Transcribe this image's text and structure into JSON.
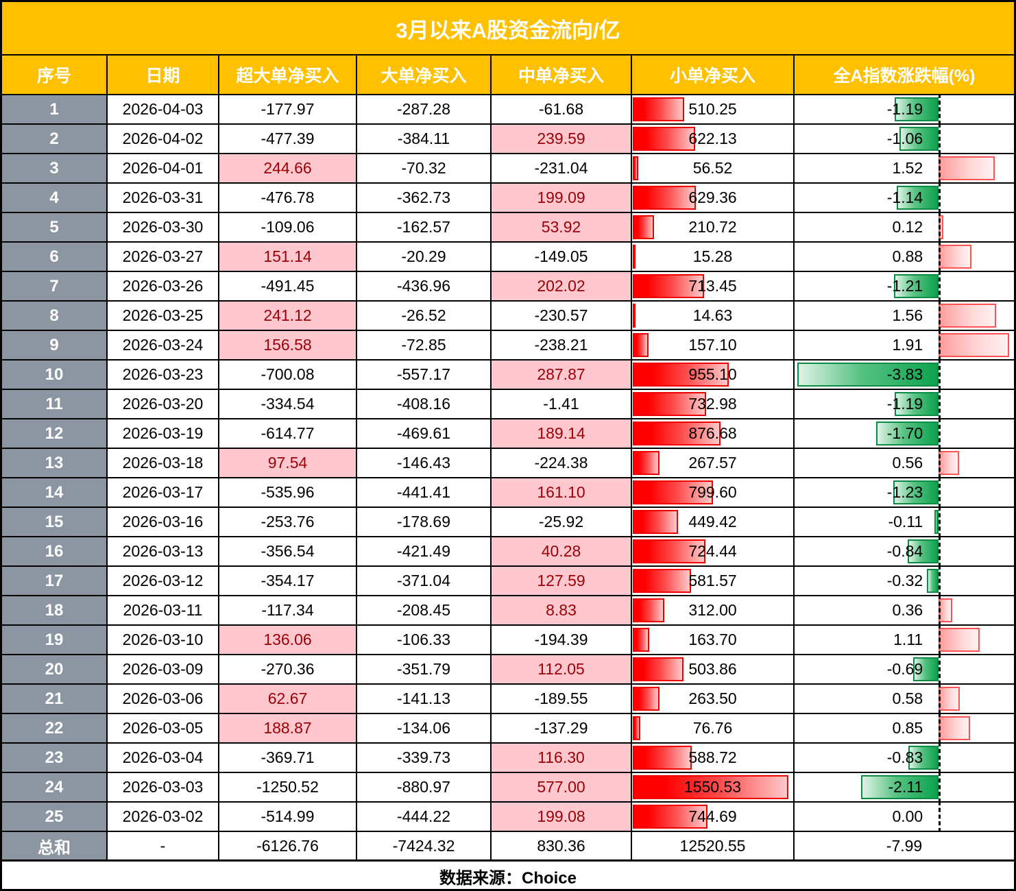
{
  "title": "3月以来A股资金流向/亿",
  "footer": {
    "source": "数据来源：Choice"
  },
  "columns": [
    "序号",
    "日期",
    "超大单净买入",
    "大单净买入",
    "中单净买入",
    "小单净买入",
    "全A指数涨跌幅(%)"
  ],
  "colors": {
    "header_bg": "#FFC000",
    "header_text": "#FFFFFF",
    "index_col_bg": "#8C96A3",
    "positive_cell_bg": "#FFC7CE",
    "positive_cell_text": "#9C0006",
    "small_net_bar": "#FF0000",
    "change_bar_negative": "#0CA24E",
    "change_bar_positive": "#FF5252",
    "zero_axis": "#000000"
  },
  "chart_data": {
    "type": "table",
    "title": "3月以来A股资金流向/亿",
    "columns": [
      "序号",
      "日期",
      "超大单净买入",
      "大单净买入",
      "中单净买入",
      "小单净买入",
      "全A指数涨跌幅(%)"
    ],
    "bar_scales": {
      "small_net_max": 1550.53,
      "index_change_max": 3.83
    },
    "rows": [
      {
        "no": "1",
        "date": "2026-04-03",
        "xl": "-177.97",
        "l": "-287.28",
        "m": "-61.68",
        "s": "510.25",
        "idx": "-1.19"
      },
      {
        "no": "2",
        "date": "2026-04-02",
        "xl": "-477.39",
        "l": "-384.11",
        "m": "239.59",
        "s": "622.13",
        "idx": "-1.06"
      },
      {
        "no": "3",
        "date": "2026-04-01",
        "xl": "244.66",
        "l": "-70.32",
        "m": "-231.04",
        "s": "56.52",
        "idx": "1.52"
      },
      {
        "no": "4",
        "date": "2026-03-31",
        "xl": "-476.78",
        "l": "-362.73",
        "m": "199.09",
        "s": "629.36",
        "idx": "-1.14"
      },
      {
        "no": "5",
        "date": "2026-03-30",
        "xl": "-109.06",
        "l": "-162.57",
        "m": "53.92",
        "s": "210.72",
        "idx": "0.12"
      },
      {
        "no": "6",
        "date": "2026-03-27",
        "xl": "151.14",
        "l": "-20.29",
        "m": "-149.05",
        "s": "15.28",
        "idx": "0.88"
      },
      {
        "no": "7",
        "date": "2026-03-26",
        "xl": "-491.45",
        "l": "-436.96",
        "m": "202.02",
        "s": "713.45",
        "idx": "-1.21"
      },
      {
        "no": "8",
        "date": "2026-03-25",
        "xl": "241.12",
        "l": "-26.52",
        "m": "-230.57",
        "s": "14.63",
        "idx": "1.56"
      },
      {
        "no": "9",
        "date": "2026-03-24",
        "xl": "156.58",
        "l": "-72.85",
        "m": "-238.21",
        "s": "157.10",
        "idx": "1.91"
      },
      {
        "no": "10",
        "date": "2026-03-23",
        "xl": "-700.08",
        "l": "-557.17",
        "m": "287.87",
        "s": "955.10",
        "idx": "-3.83"
      },
      {
        "no": "11",
        "date": "2026-03-20",
        "xl": "-334.54",
        "l": "-408.16",
        "m": "-1.41",
        "s": "732.98",
        "idx": "-1.19"
      },
      {
        "no": "12",
        "date": "2026-03-19",
        "xl": "-614.77",
        "l": "-469.61",
        "m": "189.14",
        "s": "876.68",
        "idx": "-1.70"
      },
      {
        "no": "13",
        "date": "2026-03-18",
        "xl": "97.54",
        "l": "-146.43",
        "m": "-224.38",
        "s": "267.57",
        "idx": "0.56"
      },
      {
        "no": "14",
        "date": "2026-03-17",
        "xl": "-535.96",
        "l": "-441.41",
        "m": "161.10",
        "s": "799.60",
        "idx": "-1.23"
      },
      {
        "no": "15",
        "date": "2026-03-16",
        "xl": "-253.76",
        "l": "-178.69",
        "m": "-25.92",
        "s": "449.42",
        "idx": "-0.11"
      },
      {
        "no": "16",
        "date": "2026-03-13",
        "xl": "-356.54",
        "l": "-421.49",
        "m": "40.28",
        "s": "724.44",
        "idx": "-0.84"
      },
      {
        "no": "17",
        "date": "2026-03-12",
        "xl": "-354.17",
        "l": "-371.04",
        "m": "127.59",
        "s": "581.57",
        "idx": "-0.32"
      },
      {
        "no": "18",
        "date": "2026-03-11",
        "xl": "-117.34",
        "l": "-208.45",
        "m": "8.83",
        "s": "312.00",
        "idx": "0.36"
      },
      {
        "no": "19",
        "date": "2026-03-10",
        "xl": "136.06",
        "l": "-106.33",
        "m": "-194.39",
        "s": "163.70",
        "idx": "1.11"
      },
      {
        "no": "20",
        "date": "2026-03-09",
        "xl": "-270.36",
        "l": "-351.79",
        "m": "112.05",
        "s": "503.86",
        "idx": "-0.69"
      },
      {
        "no": "21",
        "date": "2026-03-06",
        "xl": "62.67",
        "l": "-141.13",
        "m": "-189.55",
        "s": "263.50",
        "idx": "0.58"
      },
      {
        "no": "22",
        "date": "2026-03-05",
        "xl": "188.87",
        "l": "-134.06",
        "m": "-137.29",
        "s": "76.76",
        "idx": "0.85"
      },
      {
        "no": "23",
        "date": "2026-03-04",
        "xl": "-369.71",
        "l": "-339.73",
        "m": "116.30",
        "s": "588.72",
        "idx": "-0.83"
      },
      {
        "no": "24",
        "date": "2026-03-03",
        "xl": "-1250.52",
        "l": "-880.97",
        "m": "577.00",
        "s": "1550.53",
        "idx": "-2.11"
      },
      {
        "no": "25",
        "date": "2026-03-02",
        "xl": "-514.99",
        "l": "-444.22",
        "m": "199.08",
        "s": "744.69",
        "idx": "0.00"
      }
    ],
    "total": {
      "no": "总和",
      "date": "-",
      "xl": "-6126.76",
      "l": "-7424.32",
      "m": "830.36",
      "s": "12520.55",
      "idx": "-7.99"
    }
  }
}
